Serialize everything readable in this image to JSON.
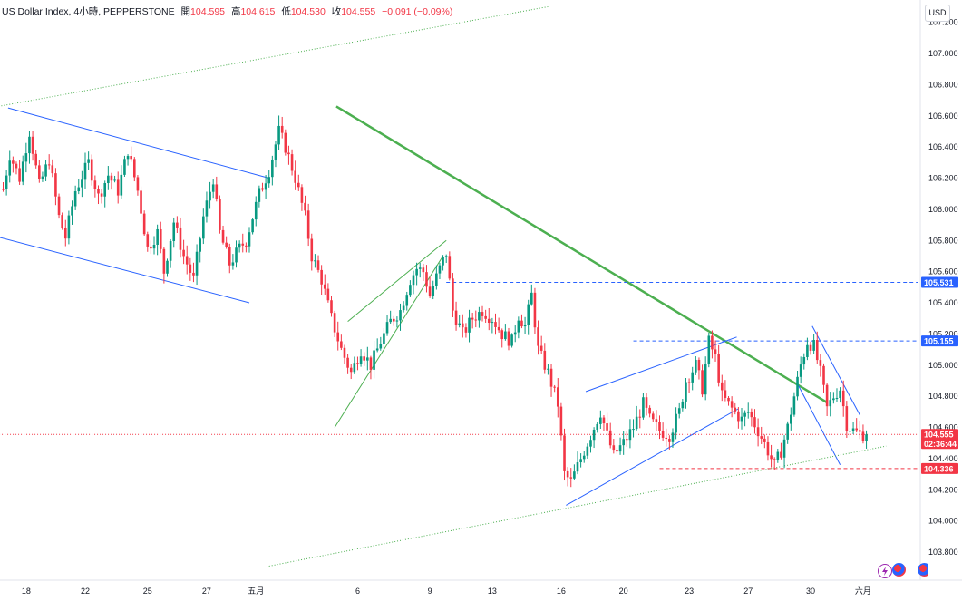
{
  "legend": {
    "symbol": "US Dollar Index, 4小時, PEPPERSTONE",
    "open_label": "開",
    "open": "104.595",
    "high_label": "高",
    "high": "104.615",
    "low_label": "低",
    "low": "104.530",
    "close_label": "收",
    "close": "104.555",
    "change": "−0.091 (−0.09%)"
  },
  "currency_button": "USD",
  "chart_data": {
    "type": "candlestick",
    "y_axis": {
      "range": [
        103.65,
        107.2
      ],
      "ticks": [
        "107.000",
        "106.800",
        "106.600",
        "106.400",
        "106.200",
        "106.000",
        "105.800",
        "105.600",
        "105.400",
        "105.200",
        "105.000",
        "104.800",
        "104.600",
        "104.400",
        "104.200",
        "104.000",
        "103.800"
      ],
      "tick_values": [
        107.0,
        106.8,
        106.6,
        106.4,
        106.2,
        106.0,
        105.8,
        105.6,
        105.4,
        105.2,
        105.0,
        104.8,
        104.6,
        104.4,
        104.2,
        104.0,
        103.8
      ],
      "top_partial_tick": "107.200"
    },
    "x_axis": {
      "labels": [
        "18",
        "22",
        "25",
        "27",
        "五月",
        "6",
        "9",
        "13",
        "16",
        "20",
        "23",
        "27",
        "30",
        "六月"
      ],
      "label_bar_index": [
        8,
        26,
        45,
        63,
        78,
        109,
        131,
        150,
        171,
        190,
        210,
        228,
        247,
        263
      ]
    },
    "price_labels": [
      {
        "text": "105.531",
        "value": 105.531,
        "color": "#2962ff",
        "style": "dashed"
      },
      {
        "text": "105.155",
        "value": 105.155,
        "color": "#2962ff",
        "style": "dashed"
      },
      {
        "text": "104.555",
        "value": 104.555,
        "color": "#f23645",
        "style": "dotted",
        "countdown": "02:36:44"
      },
      {
        "text": "104.336",
        "value": 104.336,
        "color": "#f23645",
        "style": "dashed"
      }
    ],
    "anchors": [
      [
        0,
        106.02
      ],
      [
        3,
        106.35
      ],
      [
        6,
        106.2
      ],
      [
        9,
        106.5
      ],
      [
        12,
        106.15
      ],
      [
        15,
        106.32
      ],
      [
        18,
        105.95
      ],
      [
        20,
        105.82
      ],
      [
        23,
        106.12
      ],
      [
        27,
        106.3
      ],
      [
        30,
        106.08
      ],
      [
        33,
        106.22
      ],
      [
        36,
        106.12
      ],
      [
        39,
        106.38
      ],
      [
        42,
        106.12
      ],
      [
        45,
        105.75
      ],
      [
        48,
        105.85
      ],
      [
        50,
        105.6
      ],
      [
        53,
        105.92
      ],
      [
        56,
        105.7
      ],
      [
        59,
        105.55
      ],
      [
        62,
        105.95
      ],
      [
        65,
        106.2
      ],
      [
        67,
        105.85
      ],
      [
        70,
        105.65
      ],
      [
        73,
        105.75
      ],
      [
        75,
        105.8
      ],
      [
        77,
        105.95
      ],
      [
        79,
        106.1
      ],
      [
        82,
        106.25
      ],
      [
        85,
        106.5
      ],
      [
        87,
        106.4
      ],
      [
        90,
        106.2
      ],
      [
        93,
        105.95
      ],
      [
        95,
        105.7
      ],
      [
        98,
        105.55
      ],
      [
        101,
        105.3
      ],
      [
        104,
        105.1
      ],
      [
        107,
        104.95
      ],
      [
        110,
        105.1
      ],
      [
        113,
        105.0
      ],
      [
        116,
        105.15
      ],
      [
        119,
        105.28
      ],
      [
        122,
        105.35
      ],
      [
        125,
        105.55
      ],
      [
        127,
        105.62
      ],
      [
        129,
        105.6
      ],
      [
        131,
        105.45
      ],
      [
        134,
        105.62
      ],
      [
        136,
        105.72
      ],
      [
        138,
        105.35
      ],
      [
        141,
        105.2
      ],
      [
        144,
        105.3
      ],
      [
        147,
        105.35
      ],
      [
        150,
        105.3
      ],
      [
        153,
        105.2
      ],
      [
        156,
        105.15
      ],
      [
        158,
        105.32
      ],
      [
        160,
        105.25
      ],
      [
        162,
        105.45
      ],
      [
        164,
        105.1
      ],
      [
        167,
        104.95
      ],
      [
        170,
        104.75
      ],
      [
        172,
        104.3
      ],
      [
        174,
        104.25
      ],
      [
        176,
        104.35
      ],
      [
        178,
        104.45
      ],
      [
        181,
        104.6
      ],
      [
        183,
        104.7
      ],
      [
        185,
        104.55
      ],
      [
        187,
        104.42
      ],
      [
        190,
        104.5
      ],
      [
        193,
        104.6
      ],
      [
        196,
        104.75
      ],
      [
        198,
        104.65
      ],
      [
        201,
        104.58
      ],
      [
        204,
        104.55
      ],
      [
        207,
        104.7
      ],
      [
        209,
        104.9
      ],
      [
        212,
        105.0
      ],
      [
        214,
        104.85
      ],
      [
        216,
        105.15
      ],
      [
        218,
        105.05
      ],
      [
        220,
        104.8
      ],
      [
        223,
        104.72
      ],
      [
        226,
        104.65
      ],
      [
        228,
        104.7
      ],
      [
        231,
        104.58
      ],
      [
        234,
        104.45
      ],
      [
        236,
        104.35
      ],
      [
        238,
        104.45
      ],
      [
        240,
        104.6
      ],
      [
        242,
        104.8
      ],
      [
        244,
        105.0
      ],
      [
        246,
        105.15
      ],
      [
        248,
        105.12
      ],
      [
        250,
        104.95
      ],
      [
        252,
        104.72
      ],
      [
        254,
        104.8
      ],
      [
        256,
        104.85
      ],
      [
        258,
        104.62
      ],
      [
        260,
        104.58
      ],
      [
        262,
        104.56
      ],
      [
        264,
        104.555
      ]
    ],
    "last_bar_index": 264,
    "drawings": [
      {
        "type": "line",
        "color": "#4caf50",
        "from": [
          102.5,
          106.66
        ],
        "to": [
          252,
          104.76
        ]
      },
      {
        "type": "line",
        "color": "#2962ff",
        "from": [
          2.5,
          106.65
        ],
        "to": [
          82,
          106.2
        ]
      },
      {
        "type": "line",
        "color": "#2962ff",
        "from": [
          -11,
          105.88
        ],
        "to": [
          76,
          105.4
        ]
      },
      {
        "type": "line",
        "color": "#4caf50",
        "from": [
          106,
          105.28
        ],
        "to": [
          136,
          105.8
        ]
      },
      {
        "type": "line",
        "color": "#4caf50",
        "from": [
          102,
          104.6
        ],
        "to": [
          135,
          105.7
        ]
      },
      {
        "type": "line",
        "color": "#2962ff",
        "from": [
          178.5,
          104.83
        ],
        "to": [
          224.5,
          105.18
        ]
      },
      {
        "type": "line",
        "color": "#2962ff",
        "from": [
          172.5,
          104.1
        ],
        "to": [
          225,
          104.72
        ]
      },
      {
        "type": "line",
        "color": "#2962ff",
        "from": [
          247.5,
          105.25
        ],
        "to": [
          262,
          104.68
        ]
      },
      {
        "type": "line",
        "color": "#2962ff",
        "from": [
          243,
          104.88
        ],
        "to": [
          256,
          104.36
        ]
      },
      {
        "type": "line",
        "color": "#4caf50",
        "style": "dotted",
        "from": [
          -11,
          106.62
        ],
        "to": [
          167,
          107.3
        ]
      },
      {
        "type": "line",
        "color": "#4caf50",
        "style": "dotted",
        "from": [
          82,
          103.71
        ],
        "to": [
          270,
          104.48
        ]
      },
      {
        "type": "hline",
        "color": "#2962ff",
        "style": "dashed",
        "from_bar": 136,
        "value": 105.531
      },
      {
        "type": "hline",
        "color": "#2962ff",
        "style": "dashed",
        "from_bar": 193,
        "value": 105.155
      },
      {
        "type": "hline",
        "color": "#f23645",
        "style": "dashed",
        "from_bar": 201,
        "value": 104.336
      },
      {
        "type": "hline",
        "color": "#f23645",
        "style": "dotted",
        "from_bar": -11,
        "value": 104.555
      }
    ]
  },
  "colors": {
    "up": "#089981",
    "down": "#f23645",
    "blue": "#2962ff",
    "green": "#4caf50"
  },
  "icons": [
    "lightning-event-icon",
    "us-flag-event-icon",
    "us-flag-event-icon-2"
  ]
}
